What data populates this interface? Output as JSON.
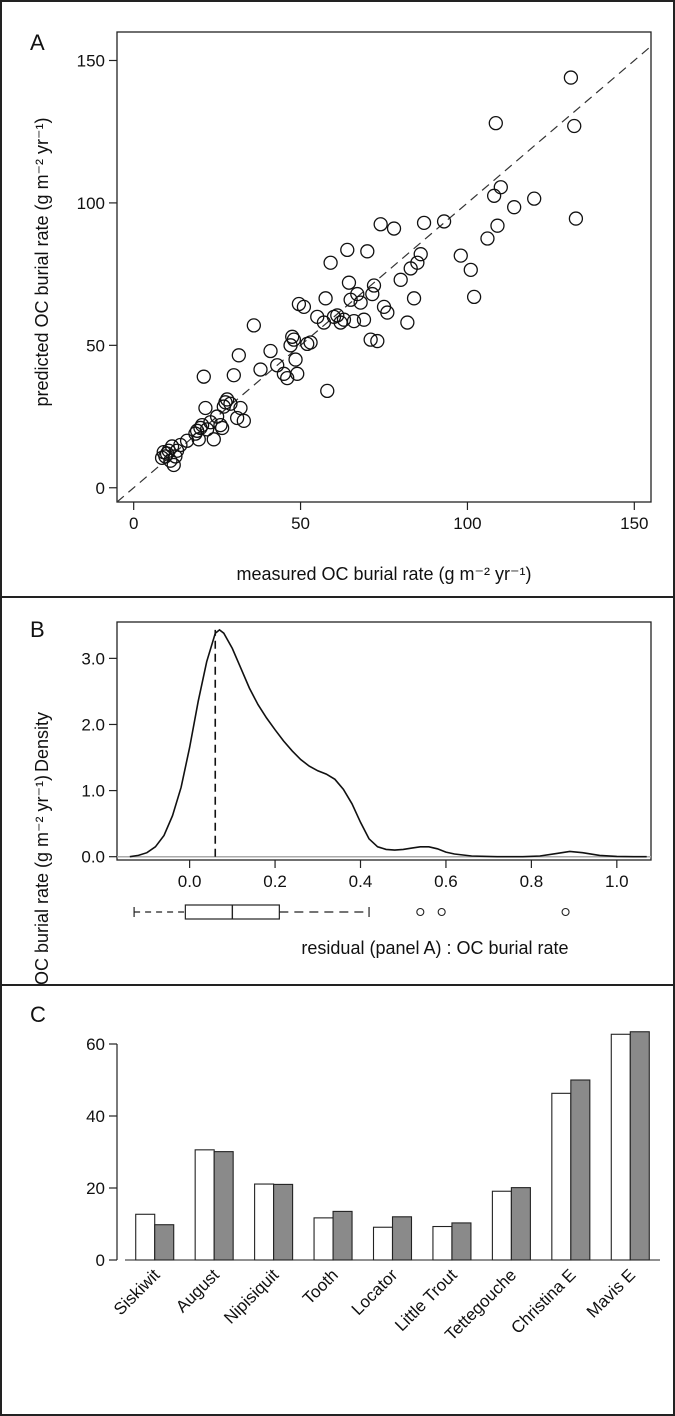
{
  "chart_data": [
    {
      "panel": "A",
      "type": "scatter",
      "xlabel": "measured OC burial rate (g m⁻² yr⁻¹)",
      "ylabel": "predicted OC burial rate (g m⁻² yr⁻¹)",
      "xlim": [
        -5,
        155
      ],
      "ylim": [
        -5,
        160
      ],
      "xticks": [
        0,
        50,
        100,
        150
      ],
      "yticks": [
        0,
        50,
        100,
        150
      ],
      "reference_line": "1:1 dashed",
      "points": [
        [
          8.5,
          10.5
        ],
        [
          9,
          12.5
        ],
        [
          9.5,
          11
        ],
        [
          10,
          12
        ],
        [
          10.5,
          13
        ],
        [
          11,
          9.5
        ],
        [
          11.5,
          14.5
        ],
        [
          12,
          8
        ],
        [
          12.5,
          11
        ],
        [
          13,
          13
        ],
        [
          14,
          15
        ],
        [
          16,
          16.5
        ],
        [
          18.5,
          19
        ],
        [
          19,
          20
        ],
        [
          19.5,
          17
        ],
        [
          20,
          21
        ],
        [
          20.5,
          22
        ],
        [
          21,
          39
        ],
        [
          21.5,
          28
        ],
        [
          22,
          20.5
        ],
        [
          23,
          23
        ],
        [
          24,
          17
        ],
        [
          25,
          25
        ],
        [
          26,
          22
        ],
        [
          26.5,
          21
        ],
        [
          27,
          28.5
        ],
        [
          27.5,
          30
        ],
        [
          28,
          31
        ],
        [
          29,
          29.5
        ],
        [
          30,
          39.5
        ],
        [
          31,
          24.5
        ],
        [
          31.5,
          46.5
        ],
        [
          32,
          28
        ],
        [
          33,
          23.5
        ],
        [
          36,
          57
        ],
        [
          38,
          41.5
        ],
        [
          41,
          48
        ],
        [
          43,
          43
        ],
        [
          45,
          40
        ],
        [
          46,
          38.5
        ],
        [
          47,
          50
        ],
        [
          47.5,
          53
        ],
        [
          48,
          52
        ],
        [
          48.5,
          45
        ],
        [
          49,
          40
        ],
        [
          49.5,
          64.5
        ],
        [
          51,
          63.5
        ],
        [
          52,
          50.5
        ],
        [
          53,
          51
        ],
        [
          55,
          60
        ],
        [
          57,
          58
        ],
        [
          57.5,
          66.5
        ],
        [
          58,
          34
        ],
        [
          59,
          79
        ],
        [
          60,
          60
        ],
        [
          61,
          60.5
        ],
        [
          62,
          58
        ],
        [
          63,
          59
        ],
        [
          64,
          83.5
        ],
        [
          64.5,
          72
        ],
        [
          65,
          66
        ],
        [
          66,
          58.5
        ],
        [
          67,
          68
        ],
        [
          68,
          65
        ],
        [
          69,
          59
        ],
        [
          70,
          83
        ],
        [
          71,
          52
        ],
        [
          71.5,
          68
        ],
        [
          72,
          71
        ],
        [
          73,
          51.5
        ],
        [
          74,
          92.5
        ],
        [
          75,
          63.5
        ],
        [
          76,
          61.5
        ],
        [
          78,
          91
        ],
        [
          80,
          73
        ],
        [
          82,
          58
        ],
        [
          83,
          77
        ],
        [
          84,
          66.5
        ],
        [
          85,
          79
        ],
        [
          86,
          82
        ],
        [
          87,
          93
        ],
        [
          93,
          93.5
        ],
        [
          98,
          81.5
        ],
        [
          101,
          76.5
        ],
        [
          102,
          67
        ],
        [
          106,
          87.5
        ],
        [
          108,
          102.5
        ],
        [
          109,
          92
        ],
        [
          110,
          105.5
        ],
        [
          114,
          98.5
        ],
        [
          108.5,
          128
        ],
        [
          120,
          101.5
        ],
        [
          131,
          144
        ],
        [
          132,
          127
        ],
        [
          132.5,
          94.5
        ]
      ]
    },
    {
      "panel": "B",
      "type": "line",
      "xlabel": "residual (panel A) : OC burial rate",
      "ylabel": "Density",
      "xlim": [
        -0.17,
        1.08
      ],
      "ylim": [
        -0.05,
        3.55
      ],
      "xticks": [
        0.0,
        0.2,
        0.4,
        0.6,
        0.8,
        1.0
      ],
      "yticks": [
        0.0,
        1.0,
        2.0,
        3.0
      ],
      "mode_line_x": 0.06,
      "density": [
        [
          -0.14,
          0.0
        ],
        [
          -0.12,
          0.02
        ],
        [
          -0.1,
          0.06
        ],
        [
          -0.08,
          0.15
        ],
        [
          -0.06,
          0.32
        ],
        [
          -0.04,
          0.62
        ],
        [
          -0.02,
          1.05
        ],
        [
          0.0,
          1.65
        ],
        [
          0.02,
          2.35
        ],
        [
          0.04,
          2.95
        ],
        [
          0.06,
          3.38
        ],
        [
          0.07,
          3.43
        ],
        [
          0.08,
          3.38
        ],
        [
          0.1,
          3.15
        ],
        [
          0.12,
          2.85
        ],
        [
          0.14,
          2.55
        ],
        [
          0.16,
          2.3
        ],
        [
          0.18,
          2.1
        ],
        [
          0.2,
          1.92
        ],
        [
          0.22,
          1.75
        ],
        [
          0.24,
          1.6
        ],
        [
          0.26,
          1.47
        ],
        [
          0.28,
          1.37
        ],
        [
          0.3,
          1.3
        ],
        [
          0.32,
          1.25
        ],
        [
          0.34,
          1.17
        ],
        [
          0.36,
          1.02
        ],
        [
          0.38,
          0.8
        ],
        [
          0.4,
          0.52
        ],
        [
          0.42,
          0.27
        ],
        [
          0.44,
          0.15
        ],
        [
          0.46,
          0.11
        ],
        [
          0.48,
          0.1
        ],
        [
          0.5,
          0.11
        ],
        [
          0.52,
          0.13
        ],
        [
          0.54,
          0.15
        ],
        [
          0.56,
          0.15
        ],
        [
          0.58,
          0.12
        ],
        [
          0.6,
          0.07
        ],
        [
          0.62,
          0.04
        ],
        [
          0.66,
          0.01
        ],
        [
          0.72,
          0.0
        ],
        [
          0.78,
          0.0
        ],
        [
          0.82,
          0.01
        ],
        [
          0.86,
          0.05
        ],
        [
          0.89,
          0.08
        ],
        [
          0.92,
          0.06
        ],
        [
          0.96,
          0.02
        ],
        [
          1.0,
          0.005
        ],
        [
          1.04,
          0.0
        ],
        [
          1.07,
          0.0
        ]
      ],
      "boxplot": {
        "whisker_low": -0.13,
        "q1": -0.01,
        "median": 0.1,
        "q3": 0.21,
        "whisker_high": 0.42,
        "outliers": [
          0.54,
          0.59,
          0.88
        ]
      }
    },
    {
      "panel": "C",
      "type": "bar",
      "ylabel": "OC burial rate (g m⁻² yr⁻¹)",
      "ylim": [
        0,
        70
      ],
      "yticks": [
        0,
        20,
        40,
        60
      ],
      "categories": [
        "Siskiwit",
        "August",
        "Nipisiquit",
        "Tooth",
        "Locator",
        "Little Trout",
        "Tettegouche",
        "Christina E",
        "Mavis E"
      ],
      "series": [
        {
          "fill": "#ffffff",
          "values": [
            12.7,
            30.6,
            21.1,
            11.7,
            9.1,
            9.3,
            19.1,
            46.3,
            62.7
          ]
        },
        {
          "fill": "#8a8a8a",
          "values": [
            9.8,
            30.1,
            21.0,
            13.5,
            12.0,
            10.3,
            20.1,
            50.0,
            63.4
          ]
        }
      ]
    }
  ],
  "panels": {
    "a": "A",
    "b": "B",
    "c": "C"
  }
}
